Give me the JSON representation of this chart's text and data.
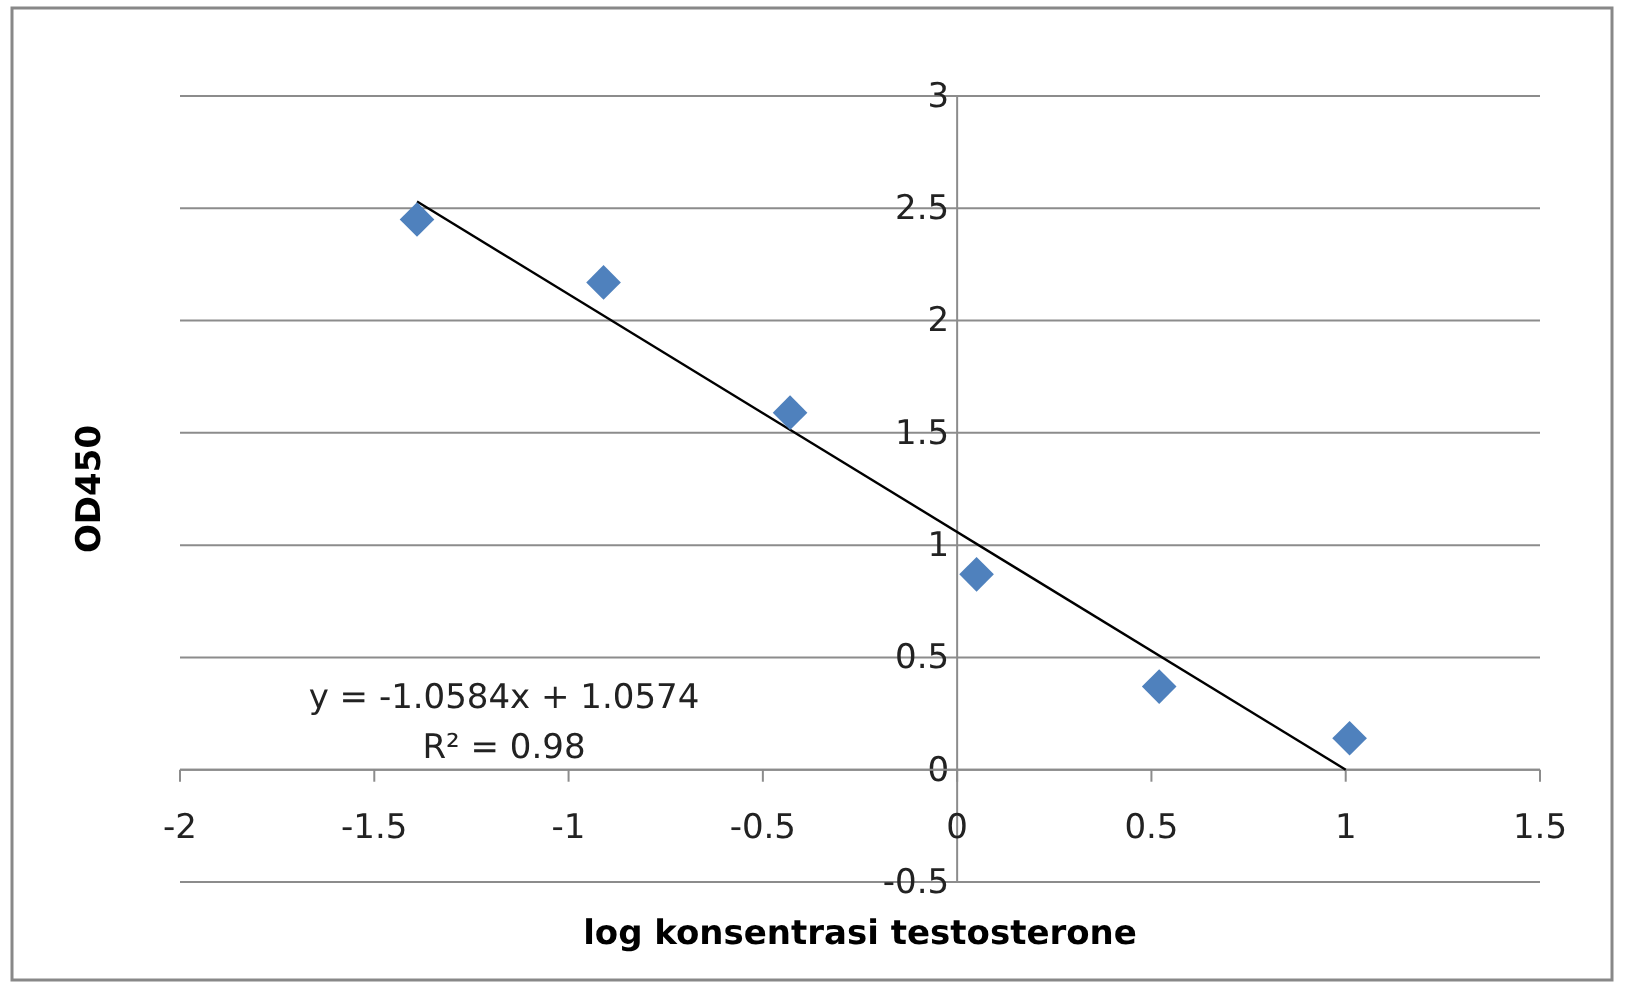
{
  "chart_data": {
    "type": "scatter",
    "xlabel": "log konsentrasi testosterone",
    "ylabel": "OD450",
    "xlim": [
      -2,
      1.5
    ],
    "xticks": [
      -2,
      -1.5,
      -1,
      -0.5,
      0,
      0.5,
      1,
      1.5
    ],
    "ylim": [
      -0.5,
      3
    ],
    "yticks": [
      -0.5,
      0,
      0.5,
      1,
      1.5,
      2,
      2.5,
      3
    ],
    "grid": "y",
    "series": [
      {
        "color": "#4f81bd",
        "marker": "diamond",
        "x": [
          -1.39,
          -0.91,
          -0.43,
          0.05,
          0.52,
          1.01
        ],
        "values": [
          2.45,
          2.17,
          1.59,
          0.87,
          0.37,
          0.14
        ]
      },
      {
        "type": "line",
        "color": "#000000",
        "marker": "none",
        "line_style": "solid",
        "x": [
          -1.39,
          1.0
        ],
        "values": [
          2.53,
          0.0
        ]
      }
    ],
    "annotations": [
      "y = -1.0584x + 1.0574",
      "R² = 0.98"
    ]
  }
}
